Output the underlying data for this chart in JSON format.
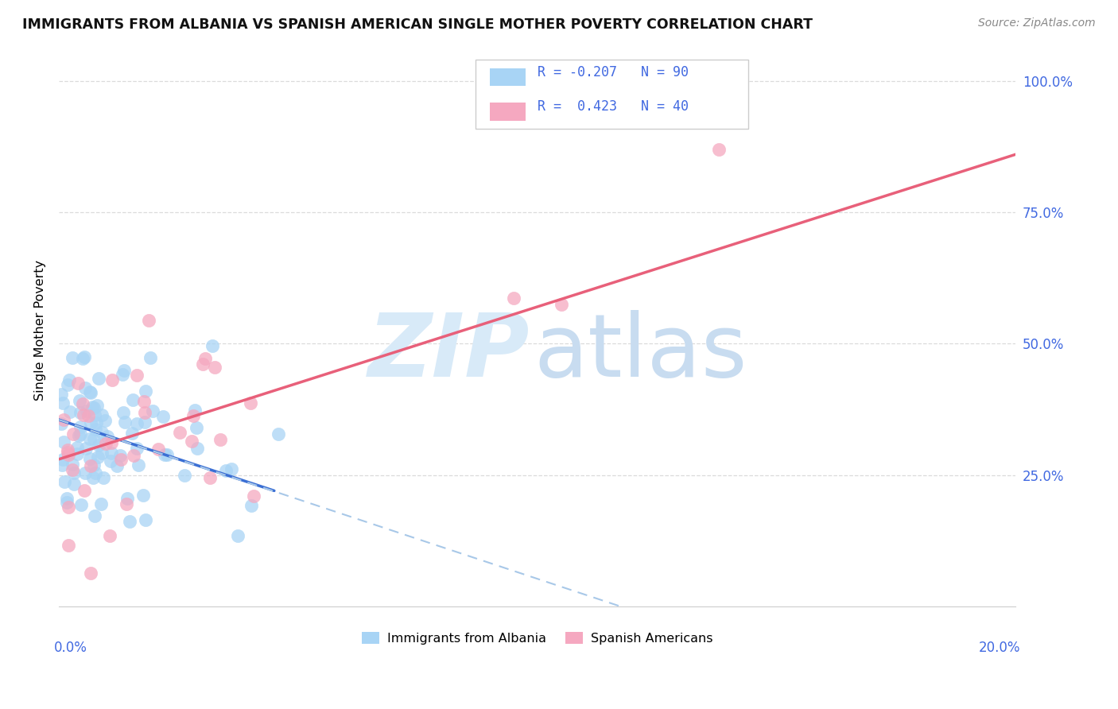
{
  "title": "IMMIGRANTS FROM ALBANIA VS SPANISH AMERICAN SINGLE MOTHER POVERTY CORRELATION CHART",
  "source": "Source: ZipAtlas.com",
  "ylabel": "Single Mother Poverty",
  "legend_label1": "Immigrants from Albania",
  "legend_label2": "Spanish Americans",
  "R1": -0.207,
  "N1": 90,
  "R2": 0.423,
  "N2": 40,
  "color_blue": "#A8D4F5",
  "color_pink": "#F5A8C0",
  "color_blue_line": "#3B6FD4",
  "color_pink_line": "#E8607A",
  "color_dashed": "#A8C8E8",
  "color_text_blue": "#4169E1",
  "watermark_zip_color": "#D8EAF8",
  "watermark_atlas_color": "#C8DCF0",
  "background_color": "#FFFFFF",
  "xmin": 0.0,
  "xmax": 0.2,
  "ymin": 0.0,
  "ymax": 1.05,
  "yticks": [
    0.25,
    0.5,
    0.75,
    1.0
  ],
  "ytick_labels_right": [
    "25.0%",
    "50.0%",
    "75.0%",
    "100.0%"
  ],
  "xtick_left_label": "0.0%",
  "xtick_right_label": "20.0%",
  "blue_line_x": [
    0.0,
    0.045
  ],
  "blue_line_y": [
    0.355,
    0.22
  ],
  "dashed_line_x": [
    0.0,
    0.2
  ],
  "dashed_line_y": [
    0.355,
    -0.25
  ],
  "pink_line_x": [
    0.0,
    0.2
  ],
  "pink_line_y": [
    0.28,
    0.86
  ]
}
